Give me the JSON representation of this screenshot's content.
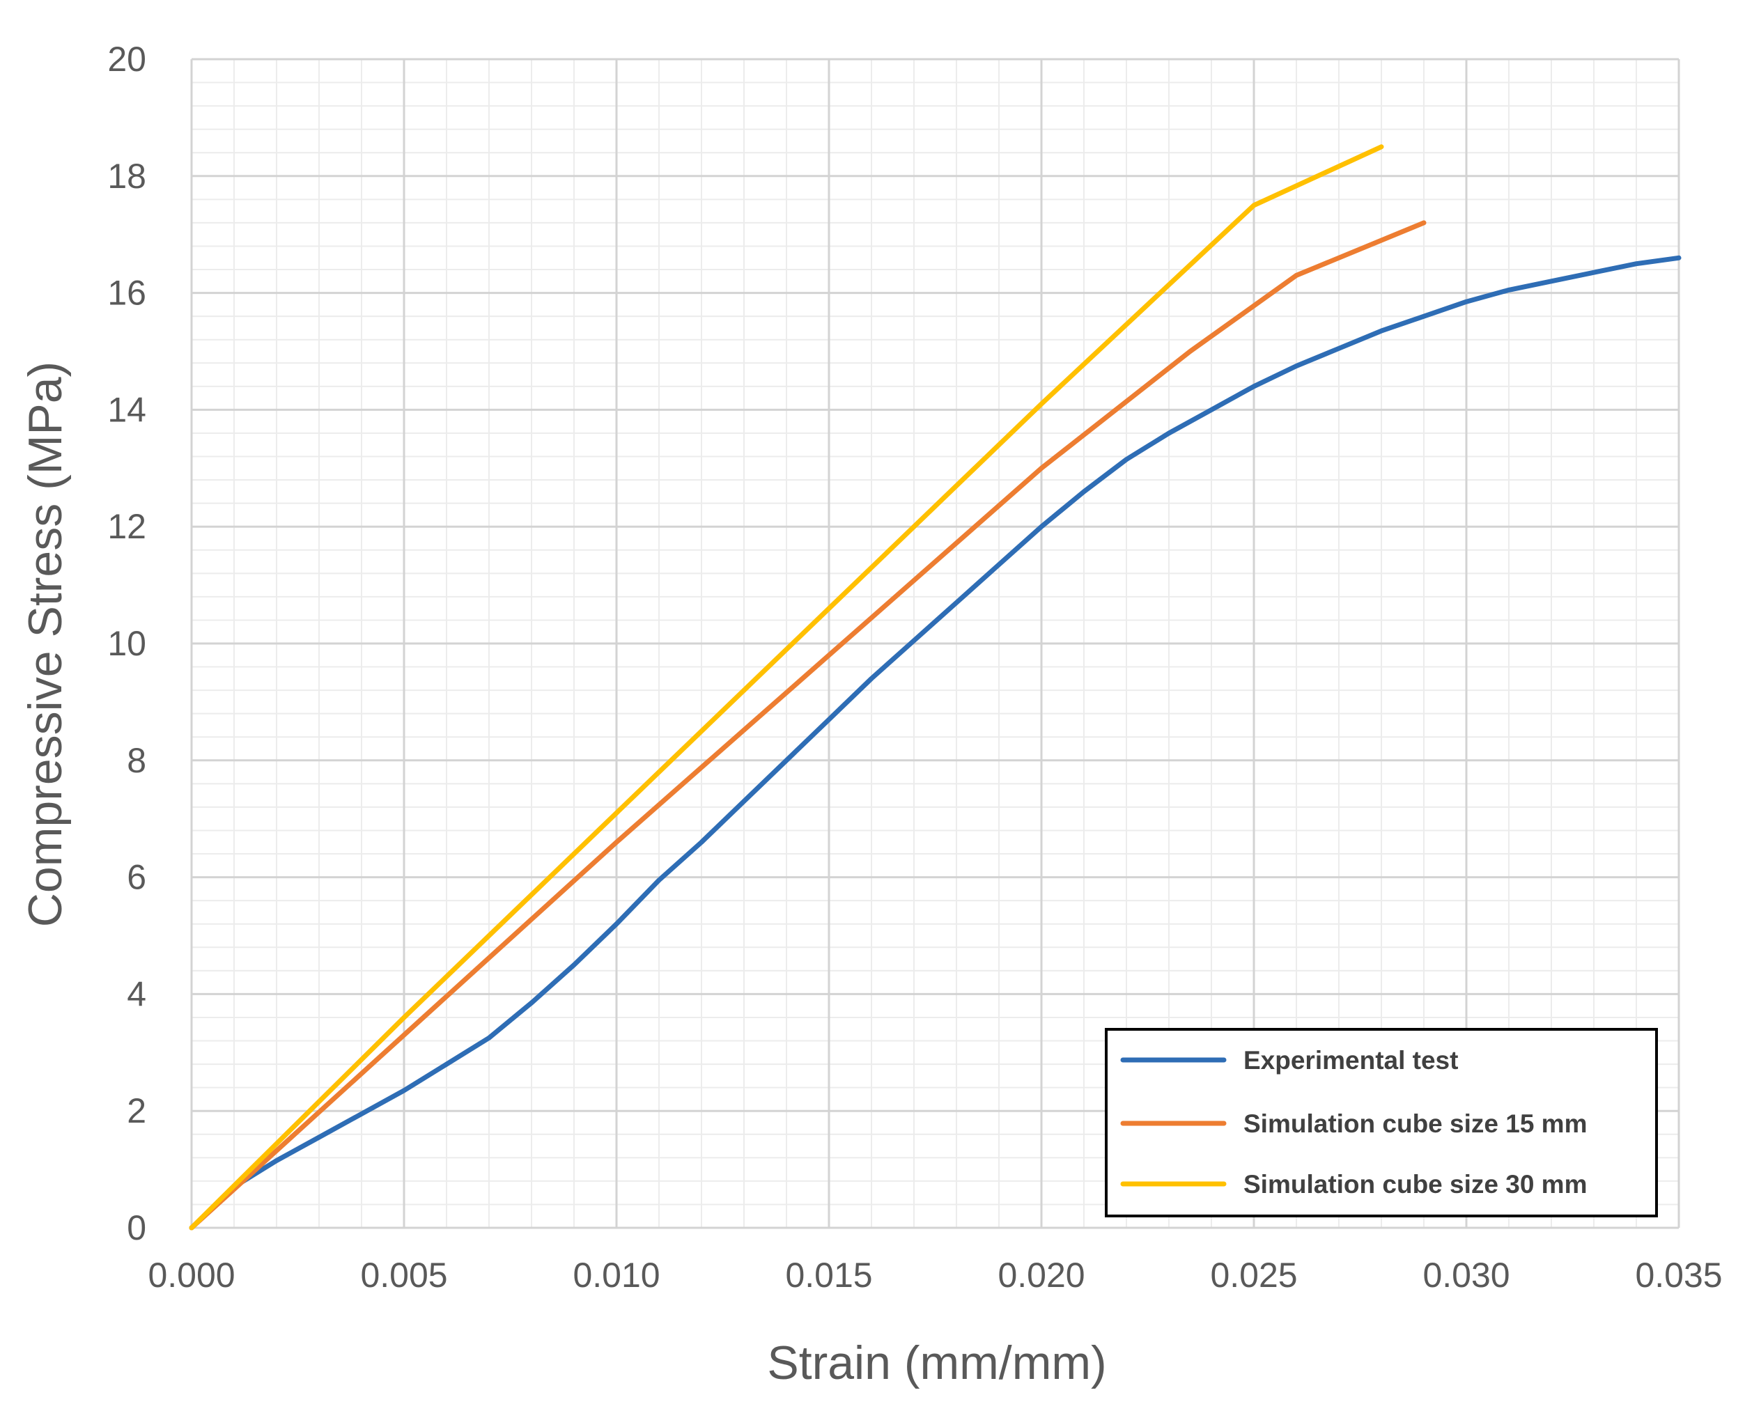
{
  "chart_data": {
    "type": "line",
    "title": "",
    "xlabel": "Strain (mm/mm)",
    "ylabel": "Compressive Stress (MPa)",
    "xlim": [
      0,
      0.035
    ],
    "ylim": [
      0,
      20
    ],
    "x_ticks": [
      "0.000",
      "0.005",
      "0.010",
      "0.015",
      "0.020",
      "0.025",
      "0.030",
      "0.035"
    ],
    "y_ticks": [
      "0",
      "2",
      "4",
      "6",
      "8",
      "10",
      "12",
      "14",
      "16",
      "18",
      "20"
    ],
    "grid": true,
    "legend_position": "bottom-right",
    "series": [
      {
        "name": "Experimental test",
        "color": "#2E6DB5",
        "x": [
          0,
          0.001,
          0.002,
          0.003,
          0.004,
          0.005,
          0.006,
          0.007,
          0.008,
          0.009,
          0.01,
          0.011,
          0.012,
          0.013,
          0.014,
          0.015,
          0.016,
          0.017,
          0.018,
          0.019,
          0.02,
          0.021,
          0.022,
          0.023,
          0.024,
          0.025,
          0.026,
          0.027,
          0.028,
          0.029,
          0.03,
          0.031,
          0.032,
          0.033,
          0.034,
          0.035
        ],
        "y": [
          0,
          0.7,
          1.15,
          1.55,
          1.95,
          2.35,
          2.8,
          3.25,
          3.85,
          4.5,
          5.2,
          5.95,
          6.6,
          7.3,
          8.0,
          8.7,
          9.4,
          10.05,
          10.7,
          11.35,
          12.0,
          12.6,
          13.15,
          13.6,
          14.0,
          14.4,
          14.75,
          15.05,
          15.35,
          15.6,
          15.85,
          16.05,
          16.2,
          16.35,
          16.5,
          16.6
        ]
      },
      {
        "name": "Simulation cube size 15 mm",
        "color": "#ED7D31",
        "x": [
          0,
          0.005,
          0.01,
          0.015,
          0.02,
          0.0235,
          0.026,
          0.029
        ],
        "y": [
          0,
          3.3,
          6.6,
          9.8,
          13.0,
          15.0,
          16.3,
          17.2
        ]
      },
      {
        "name": "Simulation cube size 30 mm",
        "color": "#FFC000",
        "x": [
          0,
          0.005,
          0.01,
          0.015,
          0.02,
          0.0225,
          0.025,
          0.028
        ],
        "y": [
          0,
          3.6,
          7.1,
          10.6,
          14.1,
          15.8,
          17.5,
          18.5
        ]
      }
    ]
  }
}
